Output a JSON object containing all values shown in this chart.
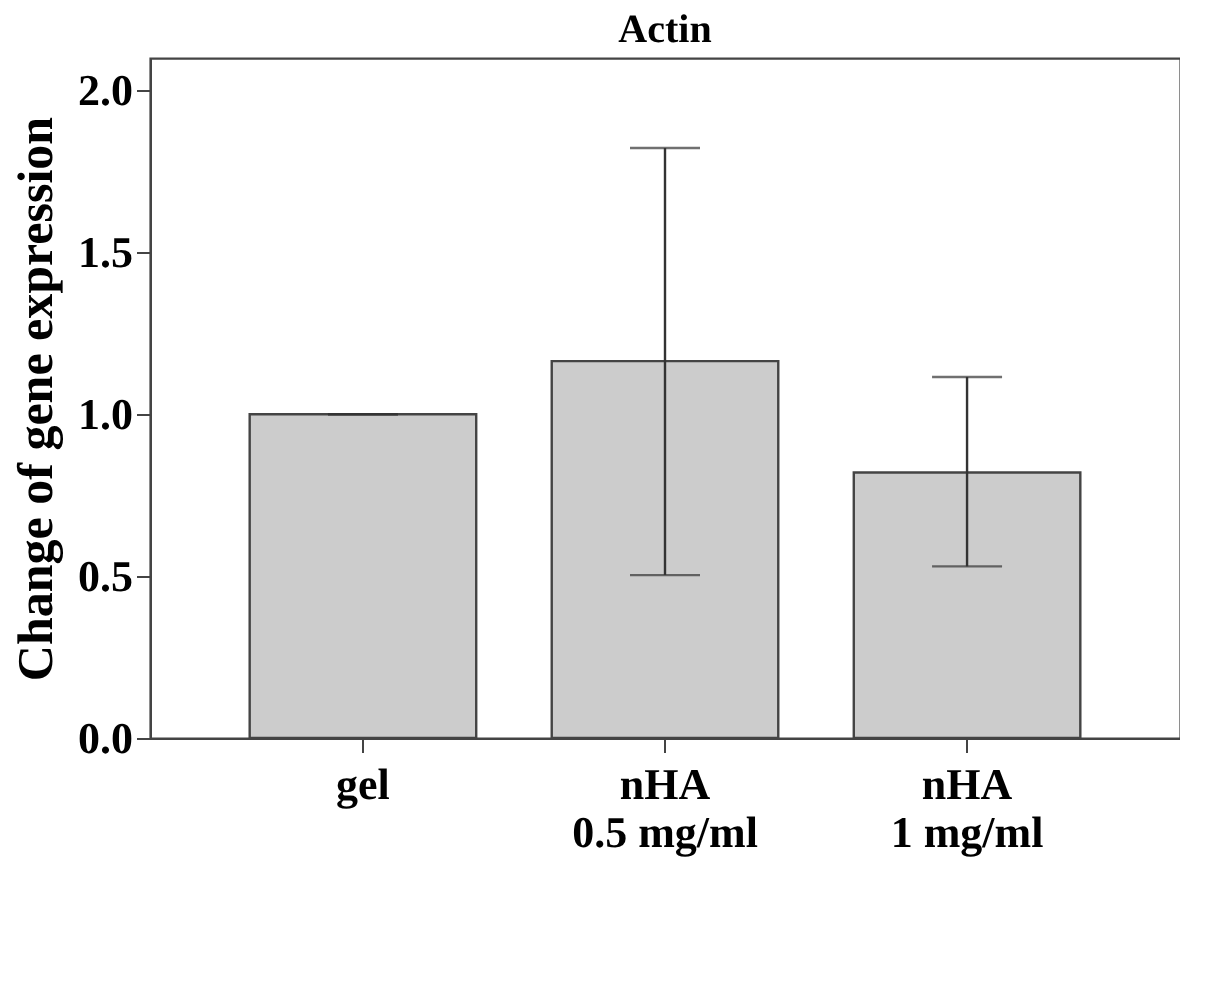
{
  "chart_data": {
    "type": "bar",
    "title": "Actin",
    "ylabel": "Change of gene expression",
    "categories": [
      "gel",
      "nHA 0.5 mg/ml",
      "nHA 1 mg/ml"
    ],
    "values": [
      1.0,
      1.164,
      0.82
    ],
    "errors": [
      0,
      [
        0.503,
        1.822
      ],
      [
        0.53,
        1.115
      ]
    ],
    "color": "#cccccc",
    "ylim": [
      0,
      2.1
    ],
    "yticks": [
      {
        "value": 0,
        "label": "0.0"
      },
      0.5,
      {
        "value": 1,
        "label": "1.0"
      },
      1.5,
      {
        "value": 2,
        "label": "2.0"
      }
    ],
    "grid": false
  }
}
